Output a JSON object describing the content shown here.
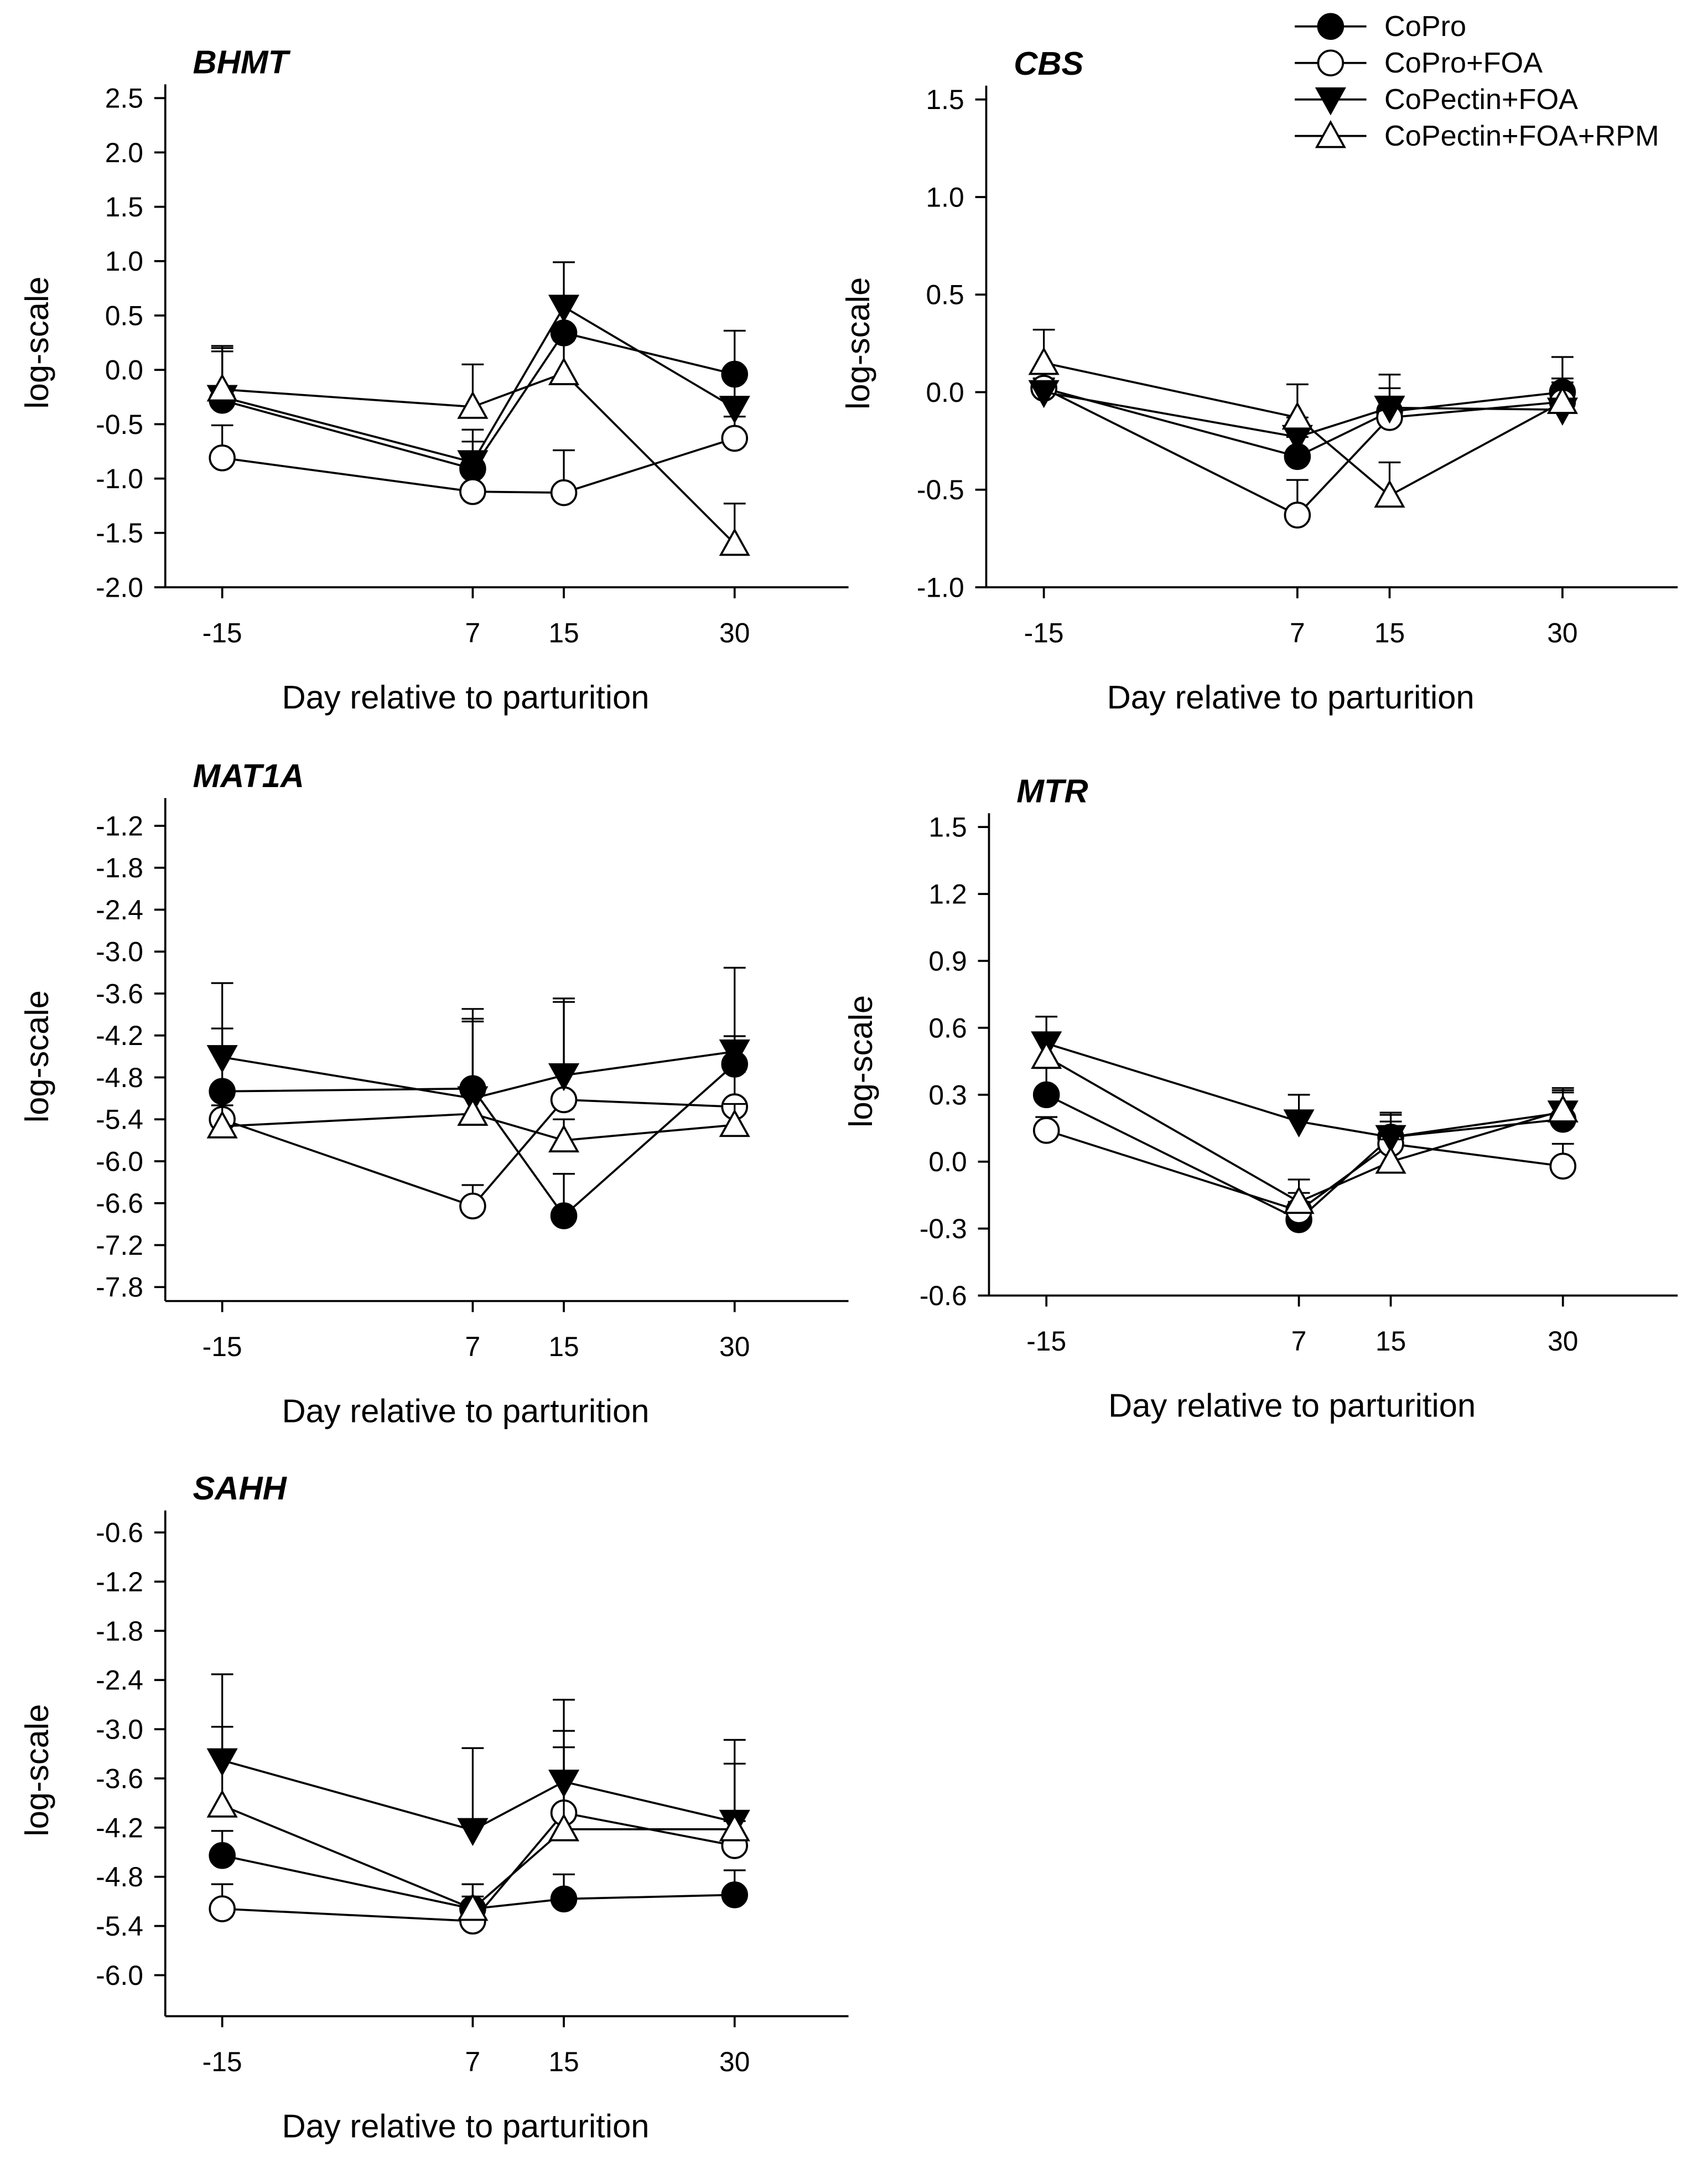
{
  "chart_data": {
    "type": "line",
    "legend": {
      "placement": "top-right",
      "entries": [
        {
          "name": "CoPro",
          "marker": "circle",
          "fill": "#000000"
        },
        {
          "name": "CoPro+FOA",
          "marker": "circle",
          "fill": "#ffffff"
        },
        {
          "name": "CoPectin+FOA",
          "marker": "triangle-down",
          "fill": "#000000"
        },
        {
          "name": "CoPectin+FOA+RPM",
          "marker": "triangle-up",
          "fill": "#ffffff"
        }
      ]
    },
    "x": [
      -15,
      7,
      15,
      30
    ],
    "x_tick_labels": [
      "-15",
      "7",
      "15",
      "30"
    ],
    "xlim": [
      -20,
      40
    ],
    "panels": [
      {
        "title": "BHMT",
        "xlabel": "Day relative to parturition",
        "ylabel": "log-scale",
        "ylim": [
          -2.0,
          2.5
        ],
        "y_tick_labels": [
          "2.5",
          "2.0",
          "1.5",
          "1.0",
          "0.5",
          "0.0",
          "-0.5",
          "-1.0",
          "-1.5",
          "-2.0"
        ],
        "y_ticks": [
          2.5,
          2.0,
          1.5,
          1.0,
          0.5,
          0.0,
          -0.5,
          -1.0,
          -1.5,
          -2.0
        ],
        "series": [
          {
            "name": "CoPro",
            "values": [
              -0.28,
              -0.91,
              0.34,
              -0.04
            ],
            "err": [
              0.45,
              0.25,
              0.3,
              0.4
            ]
          },
          {
            "name": "CoPro+FOA",
            "values": [
              -0.81,
              -1.12,
              -1.13,
              -0.63
            ],
            "err": [
              0.3,
              0.2,
              0.39,
              0.2
            ]
          },
          {
            "name": "CoPectin+FOA",
            "values": [
              -0.25,
              -0.85,
              0.58,
              -0.35
            ],
            "err": [
              0.45,
              0.3,
              0.41,
              0.3
            ]
          },
          {
            "name": "CoPectin+FOA+RPM",
            "values": [
              -0.18,
              -0.34,
              -0.03,
              -1.6
            ],
            "err": [
              0.4,
              0.39,
              0.3,
              0.37
            ]
          }
        ]
      },
      {
        "title": "CBS",
        "xlabel": "Day relative to parturition",
        "ylabel": "log-scale",
        "ylim": [
          -1.0,
          1.5
        ],
        "y_tick_labels": [
          "1.5",
          "1.0",
          "0.5",
          "0.0",
          "-0.5",
          "-1.0"
        ],
        "y_ticks": [
          1.5,
          1.0,
          0.5,
          0.0,
          -0.5,
          -1.0
        ],
        "series": [
          {
            "name": "CoPro",
            "values": [
              0.02,
              -0.33,
              -0.1,
              0.0
            ],
            "err": [
              0.05,
              0.1,
              0.12,
              0.18
            ]
          },
          {
            "name": "CoPro+FOA",
            "values": [
              0.02,
              -0.63,
              -0.13,
              -0.05
            ],
            "err": [
              0.05,
              0.18,
              0.1,
              0.12
            ]
          },
          {
            "name": "CoPectin+FOA",
            "values": [
              0.0,
              -0.23,
              -0.08,
              -0.09
            ],
            "err": [
              0.05,
              0.1,
              0.17,
              0.1
            ]
          },
          {
            "name": "CoPectin+FOA+RPM",
            "values": [
              0.15,
              -0.13,
              -0.53,
              -0.05
            ],
            "err": [
              0.17,
              0.17,
              0.17,
              0.1
            ]
          }
        ]
      },
      {
        "title": "MAT1A",
        "xlabel": "Day relative to parturition",
        "ylabel": "log-scale",
        "ylim": [
          -8.0,
          -1.0
        ],
        "y_tick_labels": [
          "-1.2",
          "-1.8",
          "-2.4",
          "-3.0",
          "-3.6",
          "-4.2",
          "-4.8",
          "-5.4",
          "-6.0",
          "-6.6",
          "-7.2",
          "-7.8"
        ],
        "y_ticks": [
          -1.2,
          -1.8,
          -2.4,
          -3.0,
          -3.6,
          -4.2,
          -4.8,
          -5.4,
          -6.0,
          -6.6,
          -7.2,
          -7.8
        ],
        "series": [
          {
            "name": "CoPro",
            "values": [
              -5.0,
              -4.96,
              -6.78,
              -4.61
            ],
            "err": [
              0.9,
              1.0,
              0.6,
              0.4
            ]
          },
          {
            "name": "CoPro+FOA",
            "values": [
              -5.4,
              -6.64,
              -5.12,
              -5.22
            ],
            "err": [
              0.4,
              0.3,
              1.4,
              0.5
            ]
          },
          {
            "name": "CoPectin+FOA",
            "values": [
              -4.51,
              -5.1,
              -4.77,
              -4.43
            ],
            "err": [
              1.06,
              1.1,
              1.1,
              1.2
            ]
          },
          {
            "name": "CoPectin+FOA+RPM",
            "values": [
              -5.5,
              -5.32,
              -5.7,
              -5.48
            ],
            "err": [
              0.3,
              1.5,
              0.3,
              0.3
            ]
          }
        ]
      },
      {
        "title": "MTR",
        "xlabel": "Day relative to parturition",
        "ylabel": "log-scale",
        "ylim": [
          -0.6,
          1.5
        ],
        "y_tick_labels": [
          "1.5",
          "1.2",
          "0.9",
          "0.6",
          "0.3",
          "0.0",
          "-0.3",
          "-0.6"
        ],
        "y_ticks": [
          1.5,
          1.2,
          0.9,
          0.6,
          0.3,
          0.0,
          -0.3,
          -0.6
        ],
        "series": [
          {
            "name": "CoPro",
            "values": [
              0.3,
              -0.26,
              0.11,
              0.19
            ],
            "err": [
              0.12,
              0.08,
              0.1,
              0.12
            ]
          },
          {
            "name": "CoPro+FOA",
            "values": [
              0.14,
              -0.22,
              0.08,
              -0.02
            ],
            "err": [
              0.06,
              0.08,
              0.1,
              0.1
            ]
          },
          {
            "name": "CoPectin+FOA",
            "values": [
              0.53,
              0.18,
              0.11,
              0.22
            ],
            "err": [
              0.12,
              0.12,
              0.11,
              0.1
            ]
          },
          {
            "name": "CoPectin+FOA+RPM",
            "values": [
              0.47,
              -0.18,
              0.0,
              0.23
            ],
            "err": [
              0.1,
              0.1,
              0.1,
              0.1
            ]
          }
        ]
      },
      {
        "title": "SAHH",
        "xlabel": "Day relative to parturition",
        "ylabel": "log-scale",
        "ylim": [
          -6.5,
          -0.5
        ],
        "y_tick_labels": [
          "-0.6",
          "-1.2",
          "-1.8",
          "-2.4",
          "-3.0",
          "-3.6",
          "-4.2",
          "-4.8",
          "-5.4",
          "-6.0"
        ],
        "y_ticks": [
          -0.6,
          -1.2,
          -1.8,
          -2.4,
          -3.0,
          -3.6,
          -4.2,
          -4.8,
          -5.4,
          -6.0
        ],
        "series": [
          {
            "name": "CoPro",
            "values": [
              -4.54,
              -5.19,
              -5.07,
              -5.02
            ],
            "err": [
              0.3,
              0.3,
              0.3,
              0.3
            ]
          },
          {
            "name": "CoPro+FOA",
            "values": [
              -5.19,
              -5.34,
              -4.02,
              -4.42
            ],
            "err": [
              0.3,
              0.3,
              1.0,
              0.3
            ]
          },
          {
            "name": "CoPectin+FOA",
            "values": [
              -3.38,
              -4.23,
              -3.64,
              -4.13
            ],
            "err": [
              1.05,
              1.0,
              1.0,
              1.0
            ]
          },
          {
            "name": "CoPectin+FOA+RPM",
            "values": [
              -3.93,
              -5.19,
              -4.22,
              -4.22
            ],
            "err": [
              0.96,
              0.3,
              1.0,
              0.8
            ]
          }
        ]
      }
    ]
  }
}
